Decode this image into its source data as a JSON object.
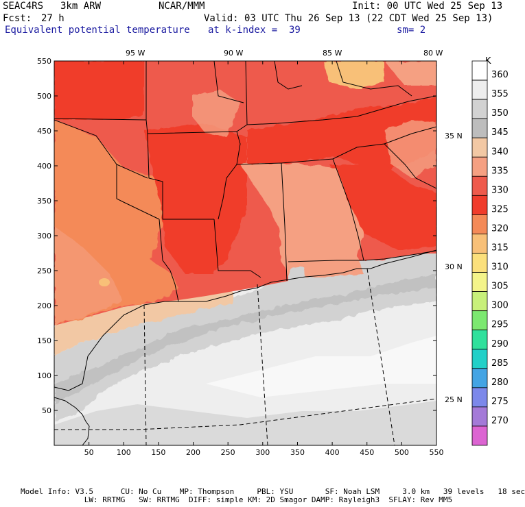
{
  "header": {
    "campaign": "SEAC4RS",
    "model": "3km ARW",
    "center": "NCAR/MMM",
    "init": "Init: 00 UTC Wed 25 Sep 13",
    "fcst_label": "Fcst:",
    "fcst_value": "27 h",
    "valid": "Valid: 03 UTC Thu 26 Sep 13 (22 CDT Wed 25 Sep 13)",
    "field": "Equivalent potential temperature",
    "level": "at k-index =  39",
    "smooth": "sm= 2"
  },
  "map": {
    "lon_labels": [
      "95 W",
      "90 W",
      "85 W",
      "80 W"
    ],
    "lat_labels": [
      "35 N",
      "30 N",
      "25 N"
    ],
    "y_ticks": [
      "550",
      "500",
      "450",
      "400",
      "350",
      "300",
      "250",
      "200",
      "150",
      "100",
      "50"
    ],
    "x_ticks": [
      "50",
      "100",
      "150",
      "200",
      "250",
      "300",
      "350",
      "400",
      "450",
      "500",
      "550"
    ]
  },
  "colorbar": {
    "unit": "K",
    "levels": [
      {
        "label": "360",
        "color": "#ffffff"
      },
      {
        "label": "355",
        "color": "#eeeeee"
      },
      {
        "label": "350",
        "color": "#d2d2d2"
      },
      {
        "label": "345",
        "color": "#bdbdbd"
      },
      {
        "label": "340",
        "color": "#f2c8a4"
      },
      {
        "label": "335",
        "color": "#f5a082"
      },
      {
        "label": "330",
        "color": "#ee5a4c"
      },
      {
        "label": "325",
        "color": "#f03c2c"
      },
      {
        "label": "320",
        "color": "#f48a58"
      },
      {
        "label": "315",
        "color": "#f8c078"
      },
      {
        "label": "310",
        "color": "#fbe07c"
      },
      {
        "label": "305",
        "color": "#f4f48a"
      },
      {
        "label": "300",
        "color": "#c8f07a"
      },
      {
        "label": "295",
        "color": "#7ce870"
      },
      {
        "label": "290",
        "color": "#30e09c"
      },
      {
        "label": "285",
        "color": "#22d0c8"
      },
      {
        "label": "280",
        "color": "#44a4e4"
      },
      {
        "label": "275",
        "color": "#7c88ea"
      },
      {
        "label": "270",
        "color": "#a47ad8"
      },
      {
        "label": "",
        "color": "#dc64d2"
      }
    ]
  },
  "footer": {
    "line1": "Model Info: V3.5      CU: No Cu    MP: Thompson     PBL: YSU       SF: Noah LSM     3.0 km   39 levels   18 sec",
    "line2": "              LW: RRTMG   SW: RRTMG  DIFF: simple KM: 2D Smagor DAMP: Rayleigh3  SFLAY: Rev MM5"
  }
}
